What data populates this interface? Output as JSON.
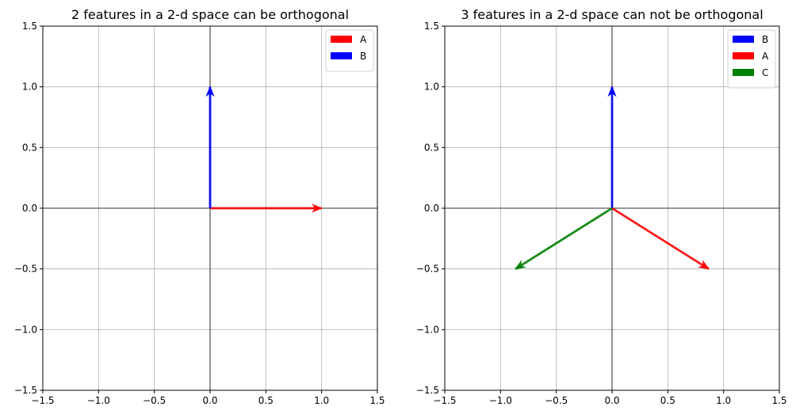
{
  "chart_data": [
    {
      "type": "quiver",
      "title": "2 features in a 2-d space can be orthogonal",
      "xlim": [
        -1.5,
        1.5
      ],
      "ylim": [
        -1.5,
        1.5
      ],
      "xticks": [
        "−1.5",
        "−1.0",
        "−0.5",
        "0.0",
        "0.5",
        "1.0",
        "1.5"
      ],
      "yticks": [
        "−1.5",
        "−1.0",
        "−0.5",
        "0.0",
        "0.5",
        "1.0",
        "1.5"
      ],
      "tick_values": [
        -1.5,
        -1.0,
        -0.5,
        0.0,
        0.5,
        1.0,
        1.5
      ],
      "grid": true,
      "legend_position": "top-right",
      "series": [
        {
          "name": "A",
          "color": "#ff0000",
          "x0": 0,
          "y0": 0,
          "dx": 1.0,
          "dy": 0.0
        },
        {
          "name": "B",
          "color": "#0000ff",
          "x0": 0,
          "y0": 0,
          "dx": 0.0,
          "dy": 1.0
        }
      ]
    },
    {
      "type": "quiver",
      "title": "3 features in a 2-d space can not be orthogonal",
      "xlim": [
        -1.5,
        1.5
      ],
      "ylim": [
        -1.5,
        1.5
      ],
      "xticks": [
        "−1.5",
        "−1.0",
        "−0.5",
        "0.0",
        "0.5",
        "1.0",
        "1.5"
      ],
      "yticks": [
        "−1.5",
        "−1.0",
        "−0.5",
        "0.0",
        "0.5",
        "1.0",
        "1.5"
      ],
      "tick_values": [
        -1.5,
        -1.0,
        -0.5,
        0.0,
        0.5,
        1.0,
        1.5
      ],
      "grid": true,
      "legend_position": "top-right",
      "series": [
        {
          "name": "B",
          "color": "#0000ff",
          "x0": 0,
          "y0": 0,
          "dx": 0.0,
          "dy": 1.0
        },
        {
          "name": "A",
          "color": "#ff0000",
          "x0": 0,
          "y0": 0,
          "dx": 0.866,
          "dy": -0.5
        },
        {
          "name": "C",
          "color": "#008000",
          "x0": 0,
          "y0": 0,
          "dx": -0.866,
          "dy": -0.5
        }
      ]
    }
  ]
}
